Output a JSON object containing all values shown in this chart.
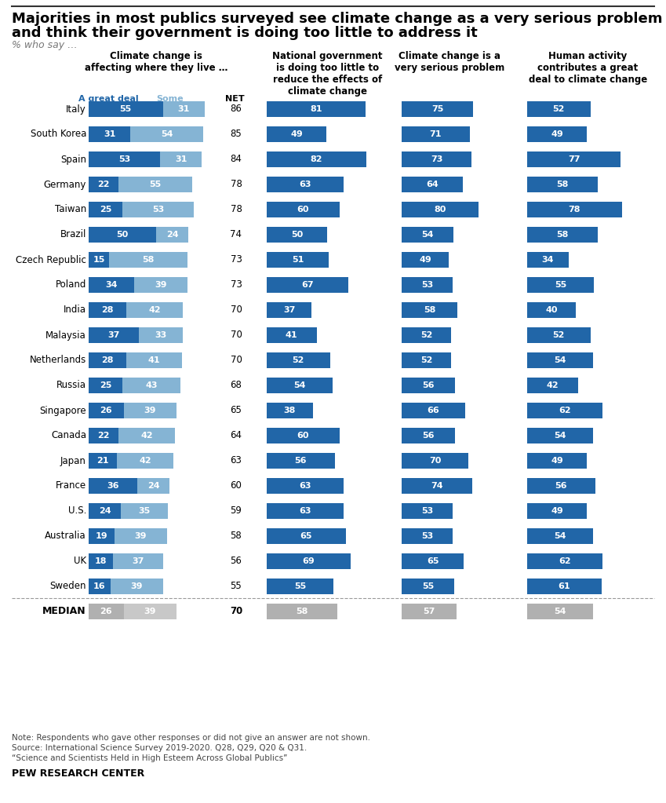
{
  "title_line1": "Majorities in most publics surveyed see climate change as a very serious problem",
  "title_line2": "and think their government is doing too little to address it",
  "subtitle": "% who say …",
  "col_headers": [
    "Climate change is\naffecting where they live …",
    "National government\nis doing too little to\nreduce the effects of\nclimate change",
    "Climate change is a\nvery serious problem",
    "Human activity\ncontributes a great\ndeal to climate change"
  ],
  "legend_label_great": "A great deal",
  "legend_label_some": "Some",
  "legend_label_net": "NET",
  "countries": [
    "Italy",
    "South Korea",
    "Spain",
    "Germany",
    "Taiwan",
    "Brazil",
    "Czech Republic",
    "Poland",
    "India",
    "Malaysia",
    "Netherlands",
    "Russia",
    "Singapore",
    "Canada",
    "Japan",
    "France",
    "U.S.",
    "Australia",
    "UK",
    "Sweden",
    "MEDIAN"
  ],
  "great_deal": [
    55,
    31,
    53,
    22,
    25,
    50,
    15,
    34,
    28,
    37,
    28,
    25,
    26,
    22,
    21,
    36,
    24,
    19,
    18,
    16,
    26
  ],
  "some": [
    31,
    54,
    31,
    55,
    53,
    24,
    58,
    39,
    42,
    33,
    41,
    43,
    39,
    42,
    42,
    24,
    35,
    39,
    37,
    39,
    39
  ],
  "net": [
    86,
    85,
    84,
    78,
    78,
    74,
    73,
    73,
    70,
    70,
    70,
    68,
    65,
    64,
    63,
    60,
    59,
    58,
    56,
    55,
    70
  ],
  "too_little": [
    81,
    49,
    82,
    63,
    60,
    50,
    51,
    67,
    37,
    41,
    52,
    54,
    38,
    60,
    56,
    63,
    63,
    65,
    69,
    55,
    58
  ],
  "very_serious": [
    75,
    71,
    73,
    64,
    80,
    54,
    49,
    53,
    58,
    52,
    52,
    56,
    66,
    56,
    70,
    74,
    53,
    53,
    65,
    55,
    57
  ],
  "human_activity": [
    52,
    49,
    77,
    58,
    78,
    58,
    34,
    55,
    40,
    52,
    54,
    42,
    62,
    54,
    49,
    56,
    49,
    54,
    62,
    61,
    54
  ],
  "color_dark_blue": "#2166a8",
  "color_light_blue": "#85b4d4",
  "color_gray_dark": "#b0b0b0",
  "color_gray_light": "#c8c8c8",
  "note_line1": "Note: Respondents who gave other responses or did not give an answer are not shown.",
  "note_line2": "Source: International Science Survey 2019-2020. Q28, Q29, Q20 & Q31.",
  "note_line3": "“Science and Scientists Held in High Esteem Across Global Publics”",
  "footer": "PEW RESEARCH CENTER"
}
